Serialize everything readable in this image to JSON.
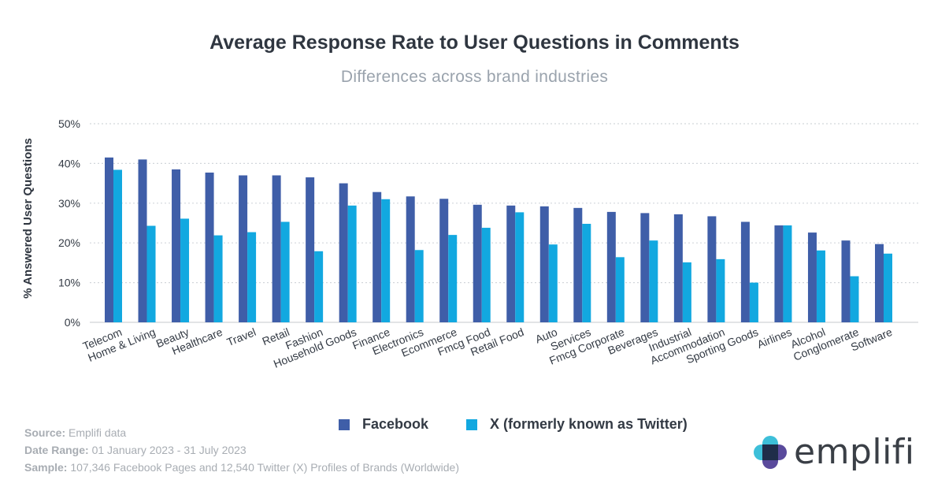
{
  "colors": {
    "facebook": "#3f5ea8",
    "x": "#12a8e0",
    "grid": "#d2d6db",
    "axis_text": "#333a44",
    "logo_teal": "#3dbfd9",
    "logo_purple": "#5a4a9c",
    "logo_dark": "#1f2d4a"
  },
  "chart_data": {
    "type": "bar",
    "title": "Average Response Rate to User Questions in Comments",
    "subtitle": "Differences across brand industries",
    "ylabel": "% Answered User Questions",
    "xlabel": "",
    "ylim": [
      0,
      50
    ],
    "yticks": [
      0,
      10,
      20,
      30,
      40,
      50
    ],
    "ytick_labels": [
      "0%",
      "10%",
      "20%",
      "30%",
      "40%",
      "50%"
    ],
    "grid": true,
    "legend_position": "bottom-center",
    "categories": [
      "Telecom",
      "Home & Living",
      "Beauty",
      "Healthcare",
      "Travel",
      "Retail",
      "Fashion",
      "Household Goods",
      "Finance",
      "Electronics",
      "Ecommerce",
      "Fmcg Food",
      "Retail Food",
      "Auto",
      "Services",
      "Fmcg Corporate",
      "Beverages",
      "Industrial",
      "Accommodation",
      "Sporting Goods",
      "Airlines",
      "Alcohol",
      "Conglomerate",
      "Software"
    ],
    "series": [
      {
        "name": "Facebook",
        "values": [
          41.5,
          41.0,
          38.5,
          37.7,
          37.0,
          37.0,
          36.5,
          35.0,
          32.8,
          31.7,
          31.1,
          29.6,
          29.4,
          29.2,
          28.8,
          27.8,
          27.5,
          27.2,
          26.7,
          25.3,
          24.4,
          22.6,
          20.6,
          19.7
        ]
      },
      {
        "name": "X (formerly known as Twitter)",
        "values": [
          38.4,
          24.3,
          26.1,
          21.9,
          22.7,
          25.3,
          17.9,
          29.4,
          31.0,
          18.2,
          22.0,
          23.8,
          27.7,
          19.6,
          24.8,
          16.4,
          20.6,
          15.1,
          15.9,
          10.0,
          24.4,
          18.1,
          11.6,
          17.3
        ]
      }
    ]
  },
  "legend": {
    "facebook_label": "Facebook",
    "x_label": "X (formerly known as Twitter)"
  },
  "notes": {
    "source_label": "Source:",
    "source_value": "Emplifi data",
    "date_label": "Date Range:",
    "date_value": "01 January 2023 - 31 July 2023",
    "sample_label": "Sample:",
    "sample_value": "107,346 Facebook Pages and 12,540 Twitter (X) Profiles of Brands (Worldwide)"
  },
  "logo": {
    "text": "emplifi",
    "icon": "emplifi-logo-icon"
  }
}
